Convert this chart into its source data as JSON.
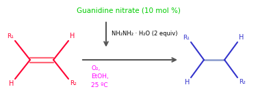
{
  "title": "Guanidine nitrate (10 mol %)",
  "title_color": "#00cc00",
  "reagent_above": "NH₂NH₂ · H₂O (2 equiv)",
  "reagent_below": "O₂,\nEtOH,\n25 ºC",
  "reagent_below_color": "#ff00ff",
  "bg_color": "#ffffff",
  "alkene_color": "#ff0033",
  "alkane_color": "#3333cc",
  "alkene_bond_color": "#ff6677",
  "alkane_bond_color": "#8899cc",
  "arrow_color": "#555555"
}
